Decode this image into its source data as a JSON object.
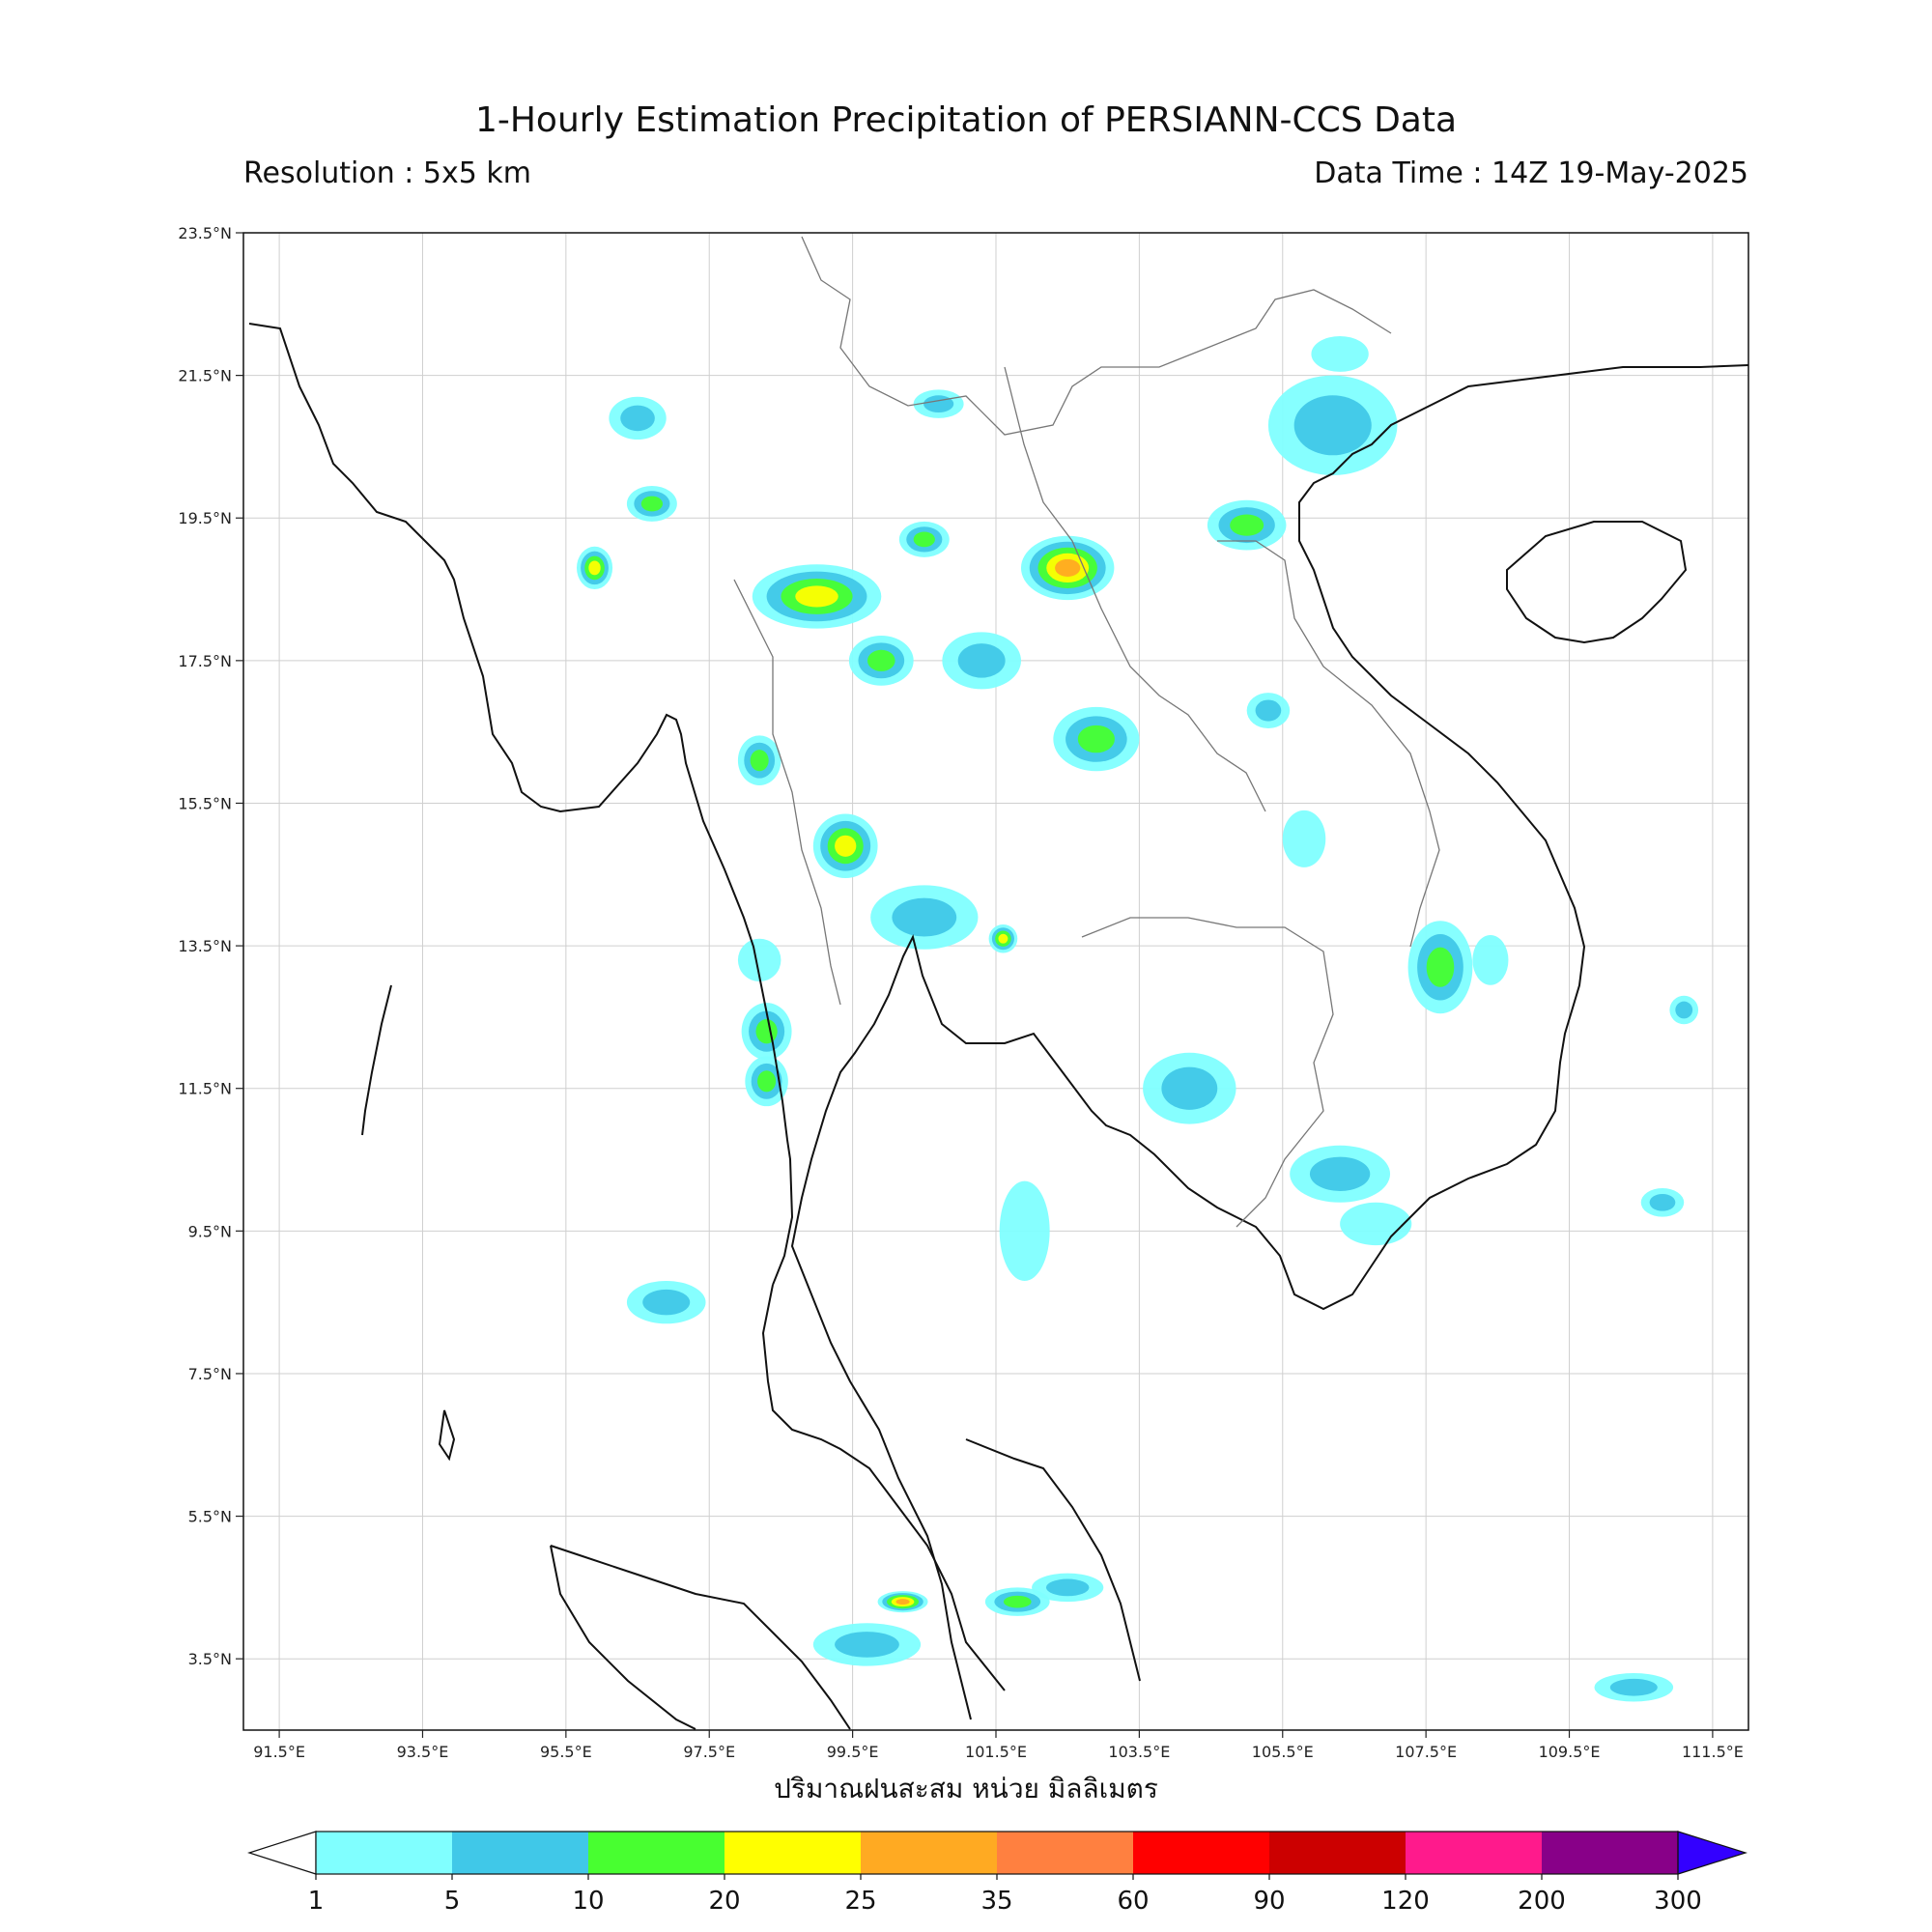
{
  "title": "1-Hourly Estimation Precipitation of PERSIANN-CCS Data",
  "resolution_label": "Resolution : 5x5 km",
  "datatime_label": "Data Time : 14Z 19-May-2025",
  "x_axis_label": "ปริมาณฝนสะสม หน่วย มิลลิเมตร",
  "lat_ticks": [
    "23.5°N",
    "21.5°N",
    "19.5°N",
    "17.5°N",
    "15.5°N",
    "13.5°N",
    "11.5°N",
    "9.5°N",
    "7.5°N",
    "5.5°N",
    "3.5°N"
  ],
  "lon_ticks": [
    "91.5°E",
    "93.5°E",
    "95.5°E",
    "97.5°E",
    "99.5°E",
    "101.5°E",
    "103.5°E",
    "105.5°E",
    "107.5°E",
    "109.5°E",
    "111.5°E"
  ],
  "colorbar": {
    "labels": [
      "1",
      "5",
      "10",
      "20",
      "25",
      "35",
      "60",
      "90",
      "120",
      "200",
      "300"
    ],
    "colors": [
      "#80ffff",
      "#40c8e8",
      "#48ff30",
      "#ffff00",
      "#ffaa22",
      "#ff8040",
      "#ff0000",
      "#cc0000",
      "#ff1a8c",
      "#880088",
      "#3300ff"
    ]
  },
  "chart_data": {
    "type": "heatmap",
    "title": "1-Hourly Estimation Precipitation of PERSIANN-CCS Data",
    "units": "mm",
    "lon_range": [
      91.0,
      112.0
    ],
    "lat_range": [
      2.5,
      23.5
    ],
    "colorbar_levels": [
      1,
      5,
      10,
      20,
      25,
      35,
      60,
      90,
      120,
      200,
      300
    ],
    "grid": true,
    "rain_cells": [
      {
        "lon": 102.5,
        "lat": 18.8,
        "rx": 0.65,
        "ry": 0.45,
        "max": 25
      },
      {
        "lon": 99.0,
        "lat": 18.4,
        "rx": 0.9,
        "ry": 0.45,
        "max": 20
      },
      {
        "lon": 99.9,
        "lat": 17.5,
        "rx": 0.45,
        "ry": 0.35,
        "max": 10
      },
      {
        "lon": 96.5,
        "lat": 20.9,
        "rx": 0.4,
        "ry": 0.3,
        "max": 5
      },
      {
        "lon": 96.7,
        "lat": 19.7,
        "rx": 0.35,
        "ry": 0.25,
        "max": 10
      },
      {
        "lon": 95.9,
        "lat": 18.8,
        "rx": 0.25,
        "ry": 0.3,
        "max": 20
      },
      {
        "lon": 100.5,
        "lat": 19.2,
        "rx": 0.35,
        "ry": 0.25,
        "max": 10
      },
      {
        "lon": 100.7,
        "lat": 21.1,
        "rx": 0.35,
        "ry": 0.2,
        "max": 5
      },
      {
        "lon": 106.2,
        "lat": 20.8,
        "rx": 0.9,
        "ry": 0.7,
        "max": 5
      },
      {
        "lon": 106.3,
        "lat": 21.8,
        "rx": 0.4,
        "ry": 0.25,
        "max": 1
      },
      {
        "lon": 105.0,
        "lat": 19.4,
        "rx": 0.55,
        "ry": 0.35,
        "max": 10
      },
      {
        "lon": 101.3,
        "lat": 17.5,
        "rx": 0.55,
        "ry": 0.4,
        "max": 5
      },
      {
        "lon": 102.9,
        "lat": 16.4,
        "rx": 0.6,
        "ry": 0.45,
        "max": 10
      },
      {
        "lon": 99.4,
        "lat": 14.9,
        "rx": 0.45,
        "ry": 0.45,
        "max": 20
      },
      {
        "lon": 100.5,
        "lat": 13.9,
        "rx": 0.75,
        "ry": 0.45,
        "max": 5
      },
      {
        "lon": 101.6,
        "lat": 13.6,
        "rx": 0.2,
        "ry": 0.2,
        "max": 20
      },
      {
        "lon": 98.2,
        "lat": 16.1,
        "rx": 0.3,
        "ry": 0.35,
        "max": 10
      },
      {
        "lon": 98.2,
        "lat": 13.3,
        "rx": 0.3,
        "ry": 0.3,
        "max": 1
      },
      {
        "lon": 98.3,
        "lat": 12.3,
        "rx": 0.35,
        "ry": 0.4,
        "max": 10
      },
      {
        "lon": 98.3,
        "lat": 11.6,
        "rx": 0.3,
        "ry": 0.35,
        "max": 10
      },
      {
        "lon": 104.2,
        "lat": 11.5,
        "rx": 0.65,
        "ry": 0.5,
        "max": 5
      },
      {
        "lon": 106.3,
        "lat": 10.3,
        "rx": 0.7,
        "ry": 0.4,
        "max": 5
      },
      {
        "lon": 106.8,
        "lat": 9.6,
        "rx": 0.5,
        "ry": 0.3,
        "max": 1
      },
      {
        "lon": 101.9,
        "lat": 9.5,
        "rx": 0.35,
        "ry": 0.7,
        "max": 1
      },
      {
        "lon": 107.7,
        "lat": 13.2,
        "rx": 0.45,
        "ry": 0.65,
        "max": 10
      },
      {
        "lon": 108.4,
        "lat": 13.3,
        "rx": 0.25,
        "ry": 0.35,
        "max": 1
      },
      {
        "lon": 105.3,
        "lat": 16.8,
        "rx": 0.3,
        "ry": 0.25,
        "max": 5
      },
      {
        "lon": 105.8,
        "lat": 15.0,
        "rx": 0.3,
        "ry": 0.4,
        "max": 1
      },
      {
        "lon": 96.9,
        "lat": 8.5,
        "rx": 0.55,
        "ry": 0.3,
        "max": 5
      },
      {
        "lon": 99.7,
        "lat": 3.7,
        "rx": 0.75,
        "ry": 0.3,
        "max": 5
      },
      {
        "lon": 101.8,
        "lat": 4.3,
        "rx": 0.45,
        "ry": 0.2,
        "max": 10
      },
      {
        "lon": 102.5,
        "lat": 4.5,
        "rx": 0.5,
        "ry": 0.2,
        "max": 5
      },
      {
        "lon": 100.2,
        "lat": 4.3,
        "rx": 0.35,
        "ry": 0.15,
        "max": 25
      },
      {
        "lon": 110.4,
        "lat": 3.1,
        "rx": 0.55,
        "ry": 0.2,
        "max": 5
      },
      {
        "lon": 110.8,
        "lat": 9.9,
        "rx": 0.3,
        "ry": 0.2,
        "max": 5
      },
      {
        "lon": 111.1,
        "lat": 12.6,
        "rx": 0.2,
        "ry": 0.2,
        "max": 5
      }
    ]
  }
}
